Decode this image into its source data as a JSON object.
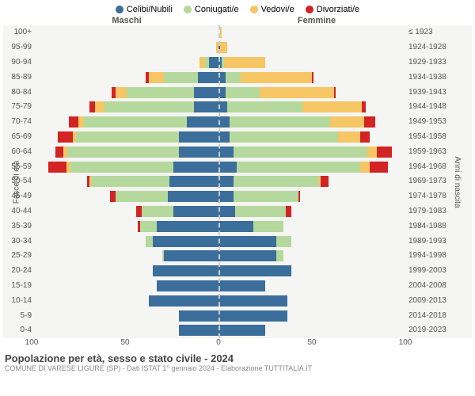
{
  "legend": [
    {
      "label": "Celibi/Nubili",
      "color": "#3b6e9b"
    },
    {
      "label": "Coniugati/e",
      "color": "#b5d99c"
    },
    {
      "label": "Vedovi/e",
      "color": "#f6c564"
    },
    {
      "label": "Divorziati/e",
      "color": "#d32323"
    }
  ],
  "headers": {
    "left": "Maschi",
    "right": "Femmine"
  },
  "y_left_title": "Fasce di età",
  "y_right_title": "Anni di nascita",
  "x_max": 100,
  "x_ticks": [
    100,
    50,
    0,
    50,
    100
  ],
  "title": "Popolazione per età, sesso e stato civile - 2024",
  "subtitle": "COMUNE DI VARESE LIGURE (SP) - Dati ISTAT 1° gennaio 2024 - Elaborazione TUTTITALIA.IT",
  "colors": {
    "bg": "#f5f5f3",
    "grid": "#e0e0e0",
    "dash": "#cccccc",
    "text": "#555555"
  },
  "rows": [
    {
      "age": "100+",
      "year": "≤ 1923",
      "m": {
        "c": 0,
        "m": 0,
        "w": 0,
        "d": 0
      },
      "f": {
        "c": 0,
        "m": 0,
        "w": 1,
        "d": 0
      }
    },
    {
      "age": "95-99",
      "year": "1924-1928",
      "m": {
        "c": 1,
        "m": 0,
        "w": 1,
        "d": 0
      },
      "f": {
        "c": 0,
        "m": 0,
        "w": 4,
        "d": 0
      }
    },
    {
      "age": "90-94",
      "year": "1929-1933",
      "m": {
        "c": 6,
        "m": 2,
        "w": 3,
        "d": 0
      },
      "f": {
        "c": 1,
        "m": 1,
        "w": 22,
        "d": 0
      }
    },
    {
      "age": "85-89",
      "year": "1934-1938",
      "m": {
        "c": 12,
        "m": 18,
        "w": 8,
        "d": 2
      },
      "f": {
        "c": 3,
        "m": 8,
        "w": 38,
        "d": 1
      }
    },
    {
      "age": "80-84",
      "year": "1939-1943",
      "m": {
        "c": 14,
        "m": 36,
        "w": 6,
        "d": 2
      },
      "f": {
        "c": 3,
        "m": 18,
        "w": 40,
        "d": 1
      }
    },
    {
      "age": "75-79",
      "year": "1944-1948",
      "m": {
        "c": 14,
        "m": 48,
        "w": 5,
        "d": 3
      },
      "f": {
        "c": 4,
        "m": 40,
        "w": 32,
        "d": 2
      }
    },
    {
      "age": "70-74",
      "year": "1949-1953",
      "m": {
        "c": 18,
        "m": 55,
        "w": 3,
        "d": 5
      },
      "f": {
        "c": 5,
        "m": 54,
        "w": 18,
        "d": 6
      }
    },
    {
      "age": "65-69",
      "year": "1954-1958",
      "m": {
        "c": 22,
        "m": 55,
        "w": 2,
        "d": 8
      },
      "f": {
        "c": 5,
        "m": 58,
        "w": 12,
        "d": 5
      }
    },
    {
      "age": "60-64",
      "year": "1959-1963",
      "m": {
        "c": 22,
        "m": 60,
        "w": 2,
        "d": 4
      },
      "f": {
        "c": 7,
        "m": 72,
        "w": 5,
        "d": 8
      }
    },
    {
      "age": "55-59",
      "year": "1964-1968",
      "m": {
        "c": 25,
        "m": 55,
        "w": 2,
        "d": 10
      },
      "f": {
        "c": 9,
        "m": 66,
        "w": 5,
        "d": 10
      }
    },
    {
      "age": "50-54",
      "year": "1969-1973",
      "m": {
        "c": 27,
        "m": 42,
        "w": 1,
        "d": 1
      },
      "f": {
        "c": 7,
        "m": 46,
        "w": 1,
        "d": 4
      }
    },
    {
      "age": "45-49",
      "year": "1974-1978",
      "m": {
        "c": 28,
        "m": 28,
        "w": 0,
        "d": 3
      },
      "f": {
        "c": 7,
        "m": 35,
        "w": 0,
        "d": 1
      }
    },
    {
      "age": "40-44",
      "year": "1979-1983",
      "m": {
        "c": 25,
        "m": 17,
        "w": 0,
        "d": 3
      },
      "f": {
        "c": 8,
        "m": 27,
        "w": 0,
        "d": 3
      }
    },
    {
      "age": "35-39",
      "year": "1984-1988",
      "m": {
        "c": 34,
        "m": 9,
        "w": 0,
        "d": 1
      },
      "f": {
        "c": 18,
        "m": 16,
        "w": 0,
        "d": 0
      }
    },
    {
      "age": "30-34",
      "year": "1989-1993",
      "m": {
        "c": 36,
        "m": 4,
        "w": 0,
        "d": 0
      },
      "f": {
        "c": 30,
        "m": 8,
        "w": 0,
        "d": 0
      }
    },
    {
      "age": "25-29",
      "year": "1994-1998",
      "m": {
        "c": 30,
        "m": 1,
        "w": 0,
        "d": 0
      },
      "f": {
        "c": 30,
        "m": 4,
        "w": 0,
        "d": 0
      }
    },
    {
      "age": "20-24",
      "year": "1999-2003",
      "m": {
        "c": 36,
        "m": 0,
        "w": 0,
        "d": 0
      },
      "f": {
        "c": 38,
        "m": 0,
        "w": 0,
        "d": 0
      }
    },
    {
      "age": "15-19",
      "year": "2004-2008",
      "m": {
        "c": 34,
        "m": 0,
        "w": 0,
        "d": 0
      },
      "f": {
        "c": 24,
        "m": 0,
        "w": 0,
        "d": 0
      }
    },
    {
      "age": "10-14",
      "year": "2009-2013",
      "m": {
        "c": 38,
        "m": 0,
        "w": 0,
        "d": 0
      },
      "f": {
        "c": 36,
        "m": 0,
        "w": 0,
        "d": 0
      }
    },
    {
      "age": "5-9",
      "year": "2014-2018",
      "m": {
        "c": 22,
        "m": 0,
        "w": 0,
        "d": 0
      },
      "f": {
        "c": 36,
        "m": 0,
        "w": 0,
        "d": 0
      }
    },
    {
      "age": "0-4",
      "year": "2019-2023",
      "m": {
        "c": 22,
        "m": 0,
        "w": 0,
        "d": 0
      },
      "f": {
        "c": 24,
        "m": 0,
        "w": 0,
        "d": 0
      }
    }
  ]
}
